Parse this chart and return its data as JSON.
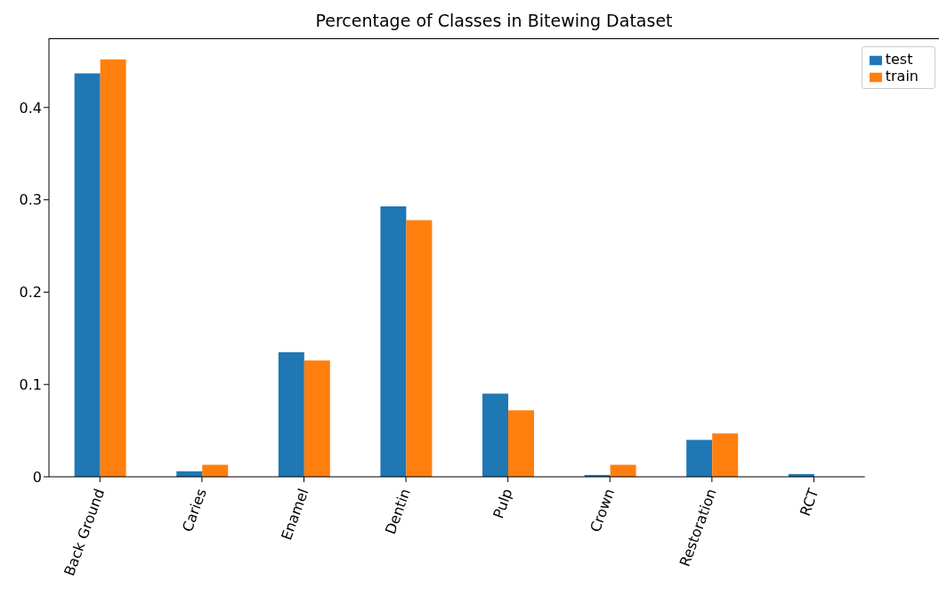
{
  "chart_data": {
    "type": "bar",
    "title": "Percentage of Classes in Bitewing Dataset",
    "categories": [
      "Back Ground",
      "Caries",
      "Enamel",
      "Dentin",
      "Pulp",
      "Crown",
      "Restoration",
      "RCT"
    ],
    "series": [
      {
        "name": "test",
        "color": "#1f77b4",
        "values": [
          0.437,
          0.006,
          0.135,
          0.293,
          0.09,
          0.002,
          0.04,
          0.003
        ]
      },
      {
        "name": "train",
        "color": "#ff7f0e",
        "values": [
          0.452,
          0.013,
          0.126,
          0.278,
          0.072,
          0.013,
          0.047,
          0
        ]
      }
    ],
    "ylim": [
      0,
      0.475
    ],
    "yticks": [
      0,
      0.1,
      0.2,
      0.3,
      0.4
    ],
    "grid": false,
    "legend": "top right"
  }
}
